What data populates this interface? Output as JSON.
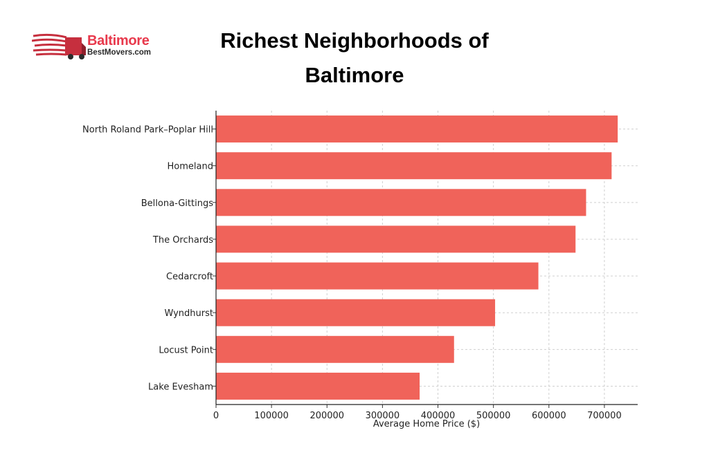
{
  "logo": {
    "line1": "Baltimore",
    "line2": "BestMovers.com",
    "icon": "moving-truck-icon",
    "brand_color": "#e8394c"
  },
  "chart_data": {
    "type": "bar",
    "orientation": "horizontal",
    "title": "Richest Neighborhoods of Baltimore",
    "xlabel": "Average Home Price ($)",
    "ylabel": "",
    "categories": [
      "North Roland Park–Poplar Hill",
      "Homeland",
      "Bellona-Gittings",
      "The Orchards",
      "Cedarcroft",
      "Wyndhurst",
      "Locust Point",
      "Lake Evesham"
    ],
    "values": [
      724000,
      713000,
      667000,
      648000,
      581000,
      503000,
      429000,
      367000
    ],
    "xlim": [
      0,
      760000
    ],
    "xticks": [
      0,
      100000,
      200000,
      300000,
      400000,
      500000,
      600000,
      700000
    ],
    "grid": true,
    "bar_color": "#f0635a"
  }
}
